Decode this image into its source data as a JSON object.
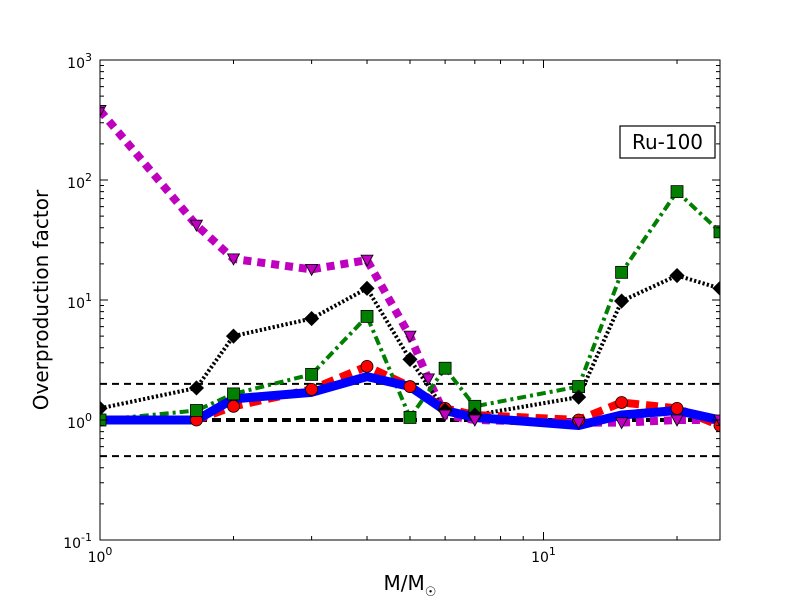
{
  "chart_data": {
    "type": "line",
    "title": "",
    "xlabel": "M/M",
    "xlabel_symbol": "☉",
    "ylabel": "Overproduction factor",
    "xscale": "log",
    "yscale": "log",
    "xlim": [
      1,
      25
    ],
    "ylim": [
      0.1,
      1000
    ],
    "grid": false,
    "annotation": "Ru-100",
    "annotation_position": "top-right",
    "x_tick_labels": [
      {
        "value": 1,
        "base": "10",
        "exp": "0"
      },
      {
        "value": 10,
        "base": "10",
        "exp": "1"
      }
    ],
    "y_tick_labels": [
      {
        "value": 0.1,
        "base": "10",
        "exp": "-1"
      },
      {
        "value": 1,
        "base": "10",
        "exp": "0"
      },
      {
        "value": 10,
        "base": "10",
        "exp": "1"
      },
      {
        "value": 100,
        "base": "10",
        "exp": "2"
      },
      {
        "value": 1000,
        "base": "10",
        "exp": "3"
      }
    ],
    "reference_lines": [
      {
        "y": 0.5,
        "style": "dashed",
        "color": "#000000",
        "weight": "thin"
      },
      {
        "y": 1.0,
        "style": "dashed",
        "color": "#000000",
        "weight": "thick"
      },
      {
        "y": 2.0,
        "style": "dashed",
        "color": "#000000",
        "weight": "thin"
      }
    ],
    "series": [
      {
        "color": "#0000ff",
        "line": "solid",
        "marker": "none",
        "x": [
          1,
          1.65,
          2,
          3,
          4,
          5,
          6,
          7,
          12,
          15,
          20,
          25
        ],
        "y": [
          1.0,
          1.0,
          1.5,
          1.7,
          2.3,
          1.9,
          1.2,
          1.05,
          0.9,
          1.1,
          1.2,
          1.0
        ]
      },
      {
        "color": "#ff0000",
        "line": "dashed",
        "marker": "circle",
        "x": [
          1,
          1.65,
          2,
          3,
          4,
          5,
          6,
          7,
          12,
          15,
          20,
          25
        ],
        "y": [
          1.0,
          1.0,
          1.3,
          1.8,
          2.8,
          1.9,
          1.25,
          1.1,
          1.0,
          1.4,
          1.25,
          0.9
        ]
      },
      {
        "color": "#007f00",
        "line": "dashdot",
        "marker": "square",
        "x": [
          1,
          1.65,
          2,
          3,
          4,
          5,
          6,
          7,
          12,
          15,
          20,
          25
        ],
        "y": [
          1.0,
          1.2,
          1.65,
          2.4,
          7.3,
          1.05,
          2.7,
          1.3,
          1.9,
          17.0,
          80.0,
          37.0
        ]
      },
      {
        "color": "#000000",
        "line": "dotted",
        "marker": "diamond",
        "x": [
          1,
          1.65,
          2,
          3,
          4,
          5,
          6,
          7,
          12,
          15,
          20,
          25
        ],
        "y": [
          1.25,
          1.85,
          5.0,
          7.0,
          12.5,
          3.2,
          1.2,
          1.1,
          1.55,
          9.8,
          16.0,
          12.5
        ]
      },
      {
        "color": "#bf00bf",
        "line": "dotted",
        "marker": "triangle-down",
        "x": [
          1,
          1.65,
          2,
          3,
          4,
          5,
          5.5,
          6,
          7,
          12,
          15,
          20,
          25
        ],
        "y": [
          380.0,
          42.0,
          22.0,
          18.0,
          21.5,
          5.0,
          2.2,
          1.1,
          1.0,
          0.95,
          0.95,
          1.0,
          1.0
        ]
      }
    ]
  }
}
